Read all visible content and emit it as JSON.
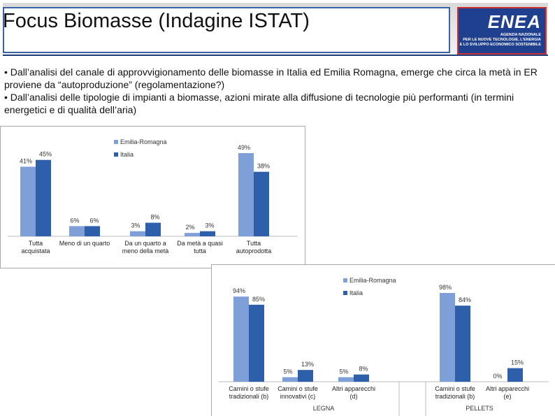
{
  "header": {
    "title": "Focus Biomasse (Indagine ISTAT)"
  },
  "logo": {
    "name": "ENEA",
    "lines": [
      "AGENZIA NAZIONALE",
      "PER LE NUOVE TECNOLOGIE, L'ENERGIA",
      "E LO SVILUPPO ECONOMICO SOSTENIBILE"
    ]
  },
  "bullets": [
    "• Dall’analisi del canale di approvvigionamento delle biomasse in Italia ed Emilia Romagna, emerge che circa la metà in ER proviene da “autoproduzione” (regolamentazione?)",
    "• Dall’analisi delle tipologie di impianti a biomasse, azioni mirate alla diffusione di tecnologie più performanti (in termini energetici e di qualità dell’aria)"
  ],
  "chart_data": [
    {
      "type": "bar",
      "categories": [
        "Tutta acquistata",
        "Meno di un quarto",
        "Da un quarto a meno della metà",
        "Da metà a quasi tutta",
        "Tutta autoprodotta"
      ],
      "series": [
        {
          "name": "Emilia-Romagna",
          "color": "#7f9fd8",
          "values": [
            41,
            6,
            3,
            2,
            49
          ],
          "value_labels": [
            "41%",
            "6%",
            "3%",
            "2%",
            "49%"
          ]
        },
        {
          "name": "Italia",
          "color": "#2e5faa",
          "values": [
            45,
            6,
            8,
            3,
            38
          ],
          "value_labels": [
            "45%",
            "6%",
            "8%",
            "3%",
            "38%"
          ]
        }
      ]
    },
    {
      "type": "bar",
      "categories": [
        "Camini o stufe tradizionali (b)",
        "Camini o stufe innovativi (c)",
        "Altri apparecchi (d)",
        "Camini o stufe tradizionali (b)",
        "Altri apparecchi (e)"
      ],
      "group_labels": [
        "LEGNA",
        "PELLETS"
      ],
      "series": [
        {
          "name": "Emilia-Romagna",
          "color": "#7f9fd8",
          "values": [
            94,
            5,
            5,
            98,
            0
          ],
          "value_labels": [
            "94%",
            "5%",
            "5%",
            "98%",
            "0%"
          ]
        },
        {
          "name": "Italia",
          "color": "#2e5faa",
          "values": [
            85,
            13,
            8,
            84,
            15
          ],
          "value_labels": [
            "85%",
            "13%",
            "8%",
            "84%",
            "15%"
          ]
        }
      ]
    }
  ]
}
